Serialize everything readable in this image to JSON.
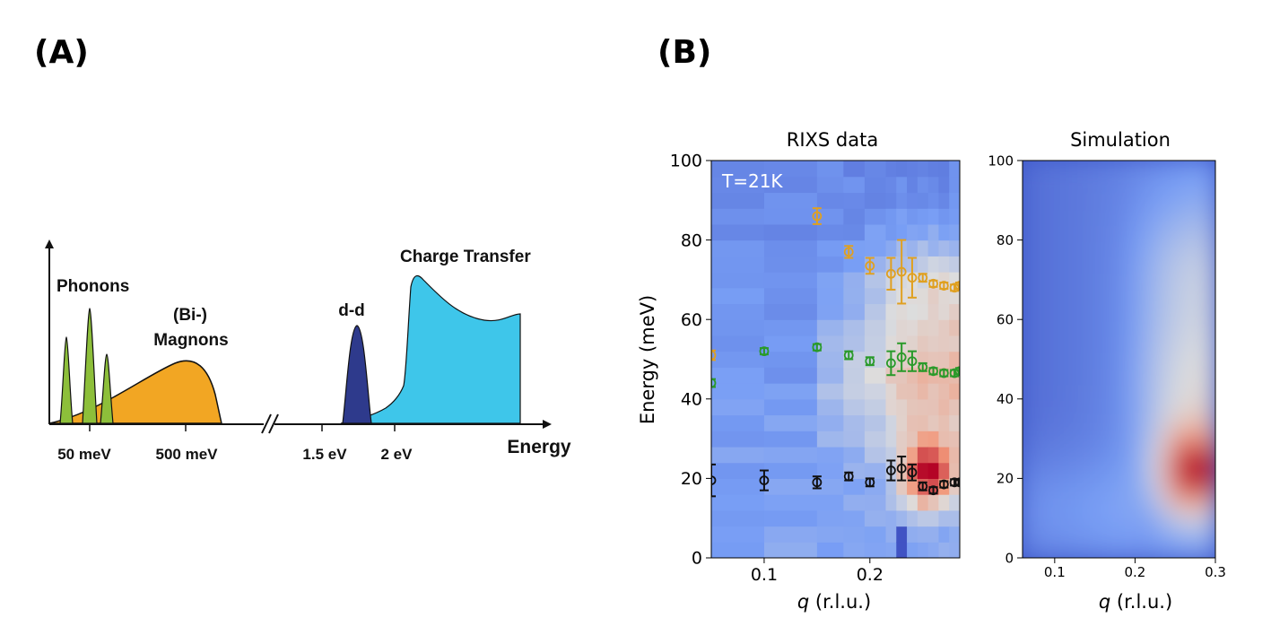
{
  "panel_a": {
    "letter": "(A)",
    "energy_label": "Energy",
    "peak_labels": {
      "phonons": "Phonons",
      "magnons_line1": "(Bi-)",
      "magnons_line2": "Magnons",
      "dd": "d-d",
      "charge_transfer": "Charge Transfer"
    },
    "tick_labels": [
      "50 meV",
      "500 meV",
      "1.5 eV",
      "2 eV"
    ],
    "colors": {
      "phonons": "#8dbf3a",
      "magnons": "#f2a623",
      "dd": "#2e3a8c",
      "charge_transfer": "#3ec6ea"
    }
  },
  "panel_b": {
    "letter": "(B)",
    "colormap": "coolwarm"
  },
  "chart_data": [
    {
      "type": "heatmap",
      "title": "RIXS data",
      "annotation": "T=21K",
      "xlabel_italic": "q",
      "xlabel_rest": " (r.l.u.)",
      "ylabel": "Energy (meV)",
      "xlim": [
        0.05,
        0.285
      ],
      "ylim": [
        0,
        100
      ],
      "xticks": [
        "0.1",
        "0.2"
      ],
      "xtick_values": [
        0.1,
        0.2
      ],
      "yticks": [
        "0",
        "20",
        "40",
        "60",
        "80",
        "100"
      ],
      "ytick_values": [
        0,
        20,
        40,
        60,
        80,
        100
      ],
      "series": [
        {
          "name": "",
          "color": "#e0a020",
          "points": [
            {
              "q": 0.05,
              "E": 51,
              "err": 1.2
            },
            {
              "q": 0.15,
              "E": 86,
              "err": 2
            },
            {
              "q": 0.18,
              "E": 77,
              "err": 1.5
            },
            {
              "q": 0.2,
              "E": 73.5,
              "err": 2
            },
            {
              "q": 0.22,
              "E": 71.5,
              "err": 4
            },
            {
              "q": 0.23,
              "E": 72,
              "err": 8
            },
            {
              "q": 0.24,
              "E": 70.5,
              "err": 5
            },
            {
              "q": 0.25,
              "E": 70.5,
              "err": 1
            },
            {
              "q": 0.26,
              "E": 69,
              "err": 0.8
            },
            {
              "q": 0.27,
              "E": 68.5,
              "err": 0.8
            },
            {
              "q": 0.28,
              "E": 68,
              "err": 0.8
            },
            {
              "q": 0.285,
              "E": 68.5,
              "err": 0.8
            }
          ]
        },
        {
          "name": "",
          "color": "#2a9a2a",
          "points": [
            {
              "q": 0.05,
              "E": 44,
              "err": 1
            },
            {
              "q": 0.1,
              "E": 52,
              "err": 0.8
            },
            {
              "q": 0.15,
              "E": 53,
              "err": 0.8
            },
            {
              "q": 0.18,
              "E": 51,
              "err": 1
            },
            {
              "q": 0.2,
              "E": 49.5,
              "err": 1
            },
            {
              "q": 0.22,
              "E": 49,
              "err": 3
            },
            {
              "q": 0.23,
              "E": 50.5,
              "err": 3.5
            },
            {
              "q": 0.24,
              "E": 49.5,
              "err": 2.5
            },
            {
              "q": 0.25,
              "E": 48,
              "err": 1
            },
            {
              "q": 0.26,
              "E": 47,
              "err": 0.8
            },
            {
              "q": 0.27,
              "E": 46.5,
              "err": 0.8
            },
            {
              "q": 0.28,
              "E": 46.5,
              "err": 0.8
            },
            {
              "q": 0.285,
              "E": 47,
              "err": 0.8
            }
          ]
        },
        {
          "name": "",
          "color": "#111111",
          "points": [
            {
              "q": 0.05,
              "E": 19.5,
              "err": 4
            },
            {
              "q": 0.1,
              "E": 19.5,
              "err": 2.5
            },
            {
              "q": 0.15,
              "E": 19,
              "err": 1.5
            },
            {
              "q": 0.18,
              "E": 20.5,
              "err": 1
            },
            {
              "q": 0.2,
              "E": 19,
              "err": 1
            },
            {
              "q": 0.22,
              "E": 22,
              "err": 2.5
            },
            {
              "q": 0.23,
              "E": 22.5,
              "err": 3
            },
            {
              "q": 0.24,
              "E": 21.5,
              "err": 2
            },
            {
              "q": 0.25,
              "E": 18,
              "err": 1
            },
            {
              "q": 0.26,
              "E": 17,
              "err": 0.8
            },
            {
              "q": 0.27,
              "E": 18.5,
              "err": 0.8
            },
            {
              "q": 0.28,
              "E": 19,
              "err": 0.8
            },
            {
              "q": 0.285,
              "E": 19,
              "err": 0.8
            }
          ]
        }
      ]
    },
    {
      "type": "heatmap",
      "title": "Simulation",
      "xlabel_italic": "q",
      "xlabel_rest": " (r.l.u.)",
      "xlim": [
        0.06,
        0.3
      ],
      "ylim": [
        0,
        100
      ],
      "xticks": [
        "0.1",
        "0.2",
        "0.3"
      ],
      "xtick_values": [
        0.1,
        0.2,
        0.3
      ],
      "yticks": [
        "0",
        "20",
        "40",
        "60",
        "80",
        "100"
      ],
      "ytick_values": [
        0,
        20,
        40,
        60,
        80,
        100
      ],
      "peak": {
        "q": 0.27,
        "E": 22
      }
    }
  ]
}
